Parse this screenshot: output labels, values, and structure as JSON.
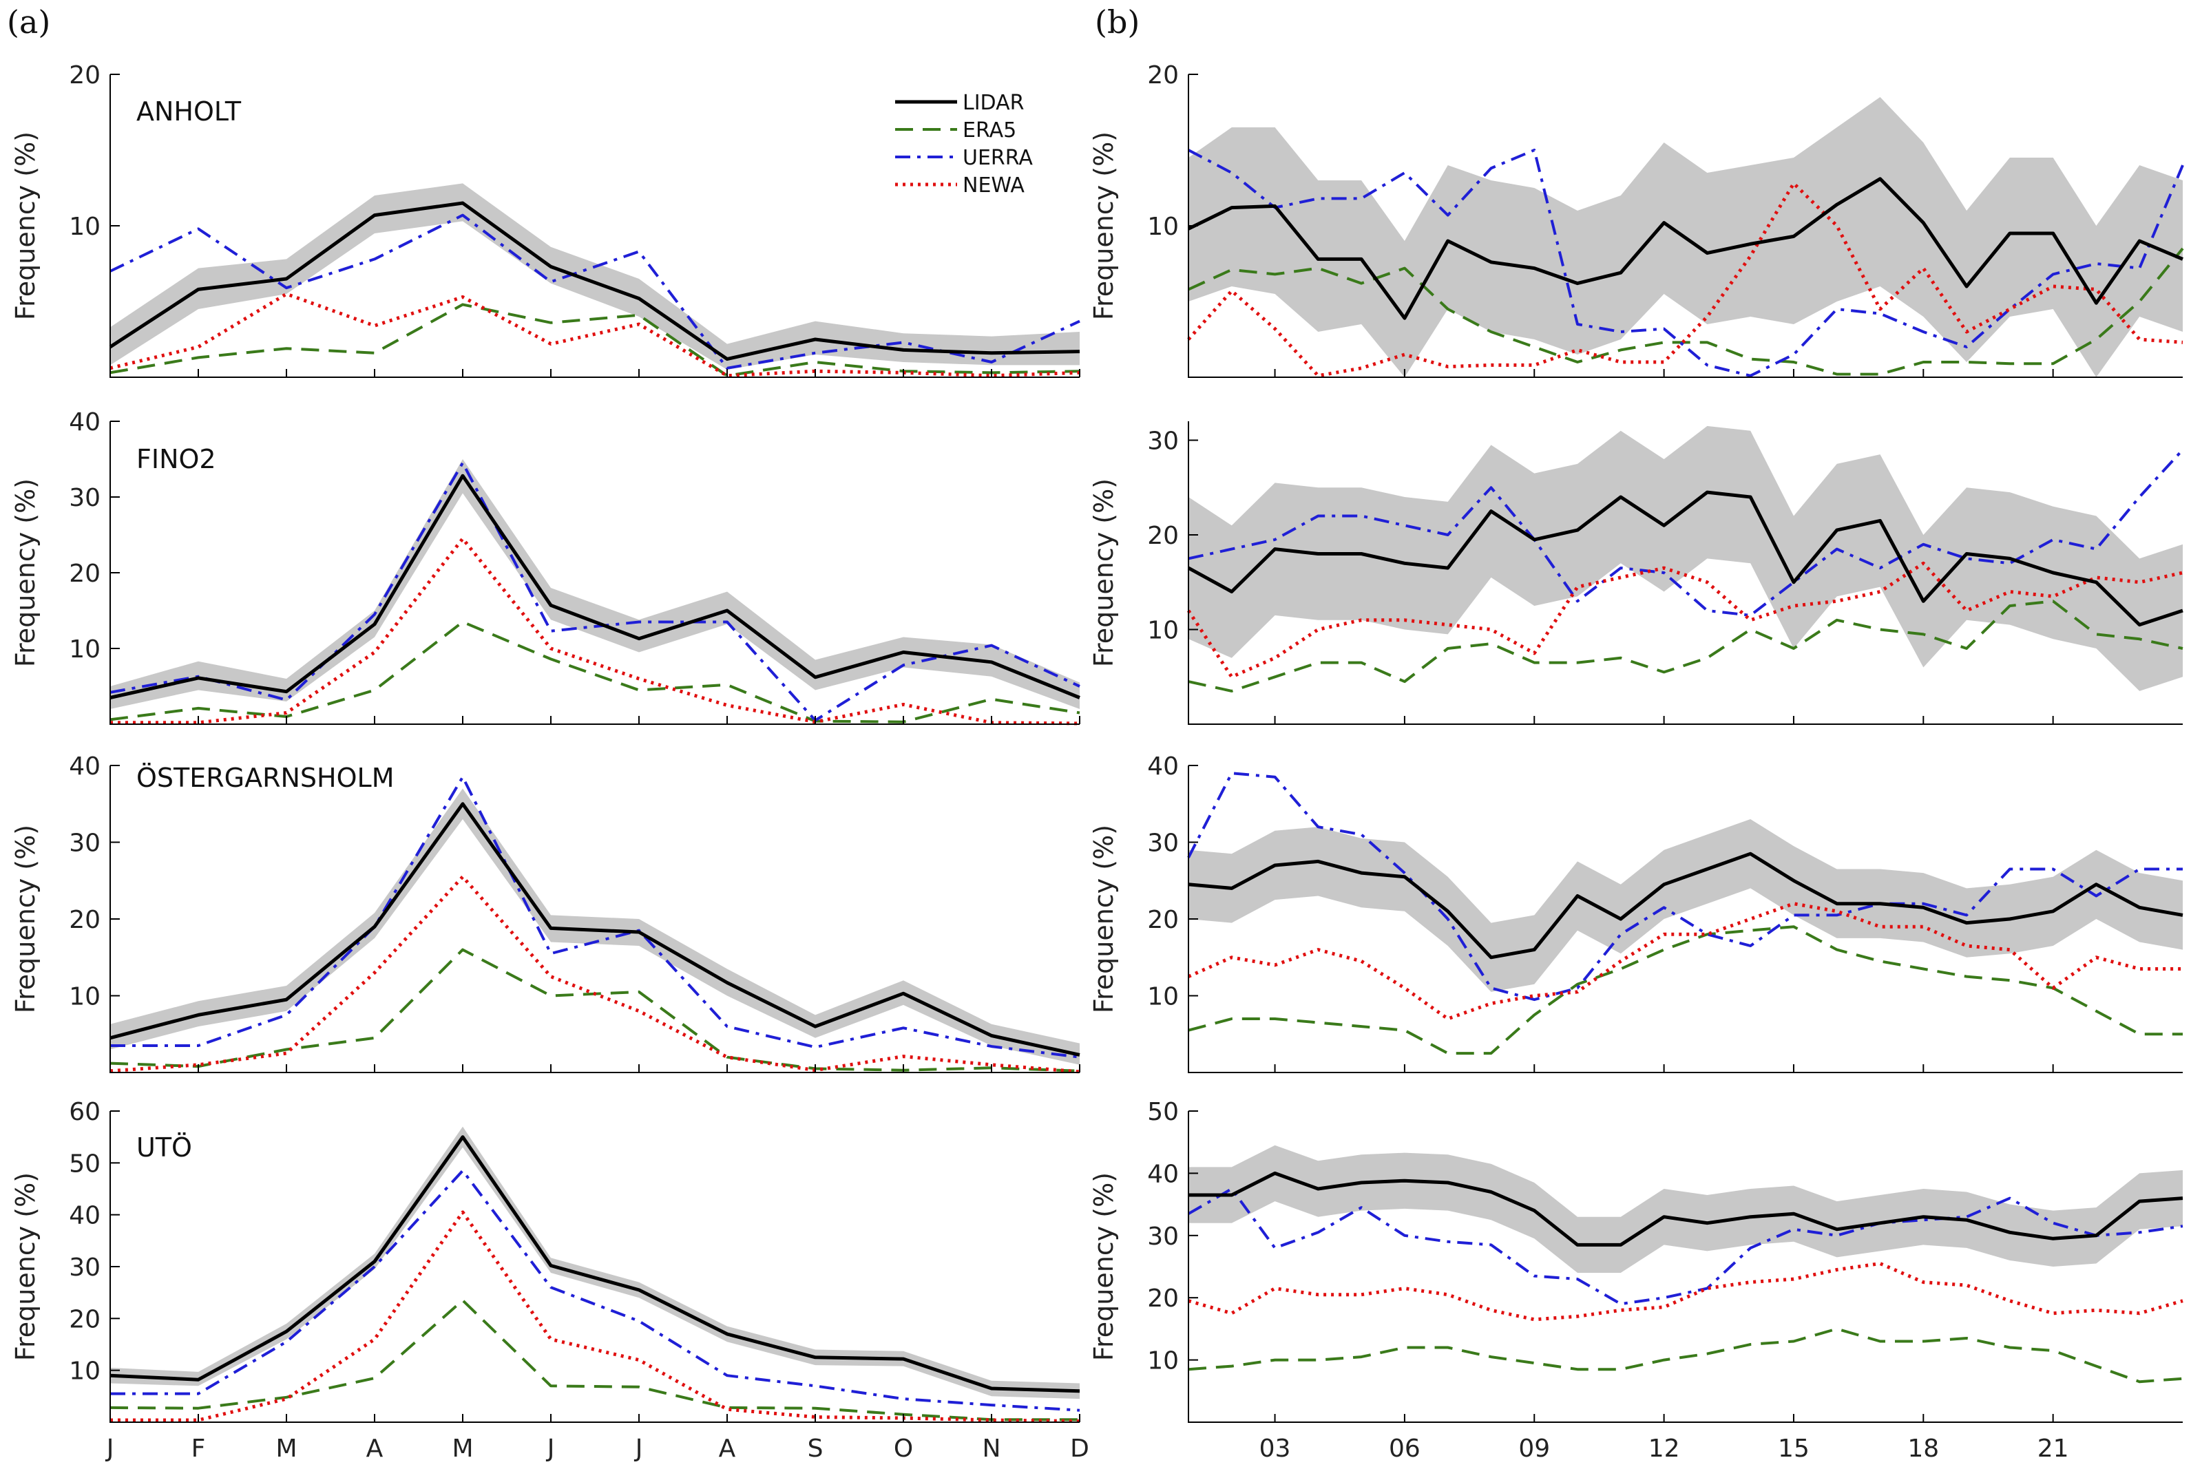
{
  "figure": {
    "panel_a_label": "(a)",
    "panel_b_label": "(b)"
  },
  "legend": [
    {
      "key": "lidar",
      "label": "LIDAR",
      "color": "#000000",
      "dash": "solid"
    },
    {
      "key": "era5",
      "label": "ERA5",
      "color": "#3a7a1a",
      "dash": "dashed"
    },
    {
      "key": "uerra",
      "label": "UERRA",
      "color": "#1f1fd6",
      "dash": "dashdot"
    },
    {
      "key": "newa",
      "label": "NEWA",
      "color": "#e01010",
      "dash": "dotted"
    }
  ],
  "colors": {
    "band": "#c8c8c8"
  },
  "y_label": "Frequency (%)",
  "chart_data": [
    {
      "panel": "a",
      "site": "ANHOLT",
      "type": "line",
      "x_ticks": [
        "J",
        "F",
        "M",
        "A",
        "M",
        "J",
        "J",
        "A",
        "S",
        "O",
        "N",
        "D"
      ],
      "y_ticks": [
        10,
        20
      ],
      "ylim": [
        0,
        20
      ],
      "lidar": [
        2.0,
        5.8,
        6.5,
        10.7,
        11.5,
        7.3,
        5.2,
        1.2,
        2.5,
        1.8,
        1.6,
        1.7
      ],
      "band_low": [
        0.8,
        4.5,
        5.5,
        9.5,
        10.3,
        6.2,
        4.0,
        0.5,
        1.5,
        1.0,
        0.8,
        0.8
      ],
      "band_high": [
        3.3,
        7.2,
        7.8,
        12.0,
        12.8,
        8.6,
        6.5,
        2.2,
        3.7,
        2.9,
        2.7,
        3.0
      ],
      "era5": [
        0.3,
        1.3,
        1.9,
        1.6,
        4.8,
        3.6,
        4.1,
        0.1,
        1.0,
        0.4,
        0.3,
        0.4
      ],
      "uerra": [
        7.0,
        9.8,
        5.9,
        7.8,
        10.7,
        6.3,
        8.3,
        0.6,
        1.6,
        2.3,
        1.0,
        3.7
      ],
      "newa": [
        0.6,
        2.0,
        5.5,
        3.4,
        5.3,
        2.2,
        3.5,
        0.1,
        0.4,
        0.3,
        0.1,
        0.3
      ]
    },
    {
      "panel": "a",
      "site": "FINO2",
      "type": "line",
      "x_ticks": [
        "J",
        "F",
        "M",
        "A",
        "M",
        "J",
        "J",
        "A",
        "S",
        "O",
        "N",
        "D"
      ],
      "y_ticks": [
        10,
        20,
        30,
        40
      ],
      "ylim": [
        0,
        40
      ],
      "lidar": [
        3.5,
        6.1,
        4.3,
        13.2,
        32.8,
        15.7,
        11.3,
        15.0,
        6.2,
        9.5,
        8.2,
        3.5
      ],
      "band_low": [
        2.0,
        4.5,
        3.0,
        11.5,
        30.5,
        13.8,
        9.5,
        13.2,
        4.5,
        7.5,
        6.3,
        2.0
      ],
      "band_high": [
        5.0,
        8.3,
        6.0,
        15.0,
        35.0,
        18.0,
        13.8,
        17.5,
        8.5,
        11.5,
        10.5,
        5.5
      ],
      "era5": [
        0.6,
        2.1,
        1.0,
        4.5,
        13.5,
        8.6,
        4.5,
        5.2,
        0.4,
        0.3,
        3.3,
        1.5
      ],
      "uerra": [
        4.2,
        6.3,
        3.2,
        14.5,
        34.5,
        12.3,
        13.5,
        13.5,
        0.5,
        7.8,
        10.4,
        5.0
      ],
      "newa": [
        0.2,
        0.2,
        1.5,
        9.5,
        24.5,
        10.0,
        6.0,
        2.5,
        0.3,
        2.6,
        0.2,
        0.1
      ]
    },
    {
      "panel": "a",
      "site": "ÖSTERGARNSHOLM",
      "type": "line",
      "x_ticks": [
        "J",
        "F",
        "M",
        "A",
        "M",
        "J",
        "J",
        "A",
        "S",
        "O",
        "N",
        "D"
      ],
      "y_ticks": [
        10,
        20,
        30,
        40
      ],
      "ylim": [
        0,
        40
      ],
      "lidar": [
        4.5,
        7.5,
        9.5,
        19.0,
        35.0,
        18.8,
        18.3,
        11.7,
        6.0,
        10.3,
        4.8,
        2.3
      ],
      "band_low": [
        3.0,
        6.0,
        8.0,
        17.5,
        33.0,
        17.0,
        16.5,
        10.0,
        4.5,
        8.8,
        3.5,
        1.0
      ],
      "band_high": [
        6.3,
        9.3,
        11.3,
        20.8,
        37.0,
        20.5,
        20.0,
        13.5,
        7.5,
        12.0,
        6.3,
        3.8
      ],
      "era5": [
        1.2,
        0.8,
        3.0,
        4.5,
        16.0,
        10.0,
        10.5,
        2.0,
        0.5,
        0.3,
        0.6,
        0.2
      ],
      "uerra": [
        3.5,
        3.5,
        7.5,
        19.0,
        38.5,
        15.5,
        18.5,
        6.0,
        3.3,
        5.8,
        3.4,
        2.0
      ],
      "newa": [
        0.2,
        1.0,
        2.5,
        13.0,
        25.5,
        12.5,
        8.0,
        2.0,
        0.3,
        2.1,
        1.0,
        0.1
      ]
    },
    {
      "panel": "a",
      "site": "UTÖ",
      "type": "line",
      "x_ticks": [
        "J",
        "F",
        "M",
        "A",
        "M",
        "J",
        "J",
        "A",
        "S",
        "O",
        "N",
        "D"
      ],
      "y_ticks": [
        10,
        20,
        30,
        40,
        50,
        60
      ],
      "ylim": [
        0,
        60
      ],
      "lidar": [
        9.0,
        8.2,
        17.5,
        31.0,
        55.0,
        30.2,
        25.5,
        17.0,
        12.5,
        12.2,
        6.5,
        6.0
      ],
      "band_low": [
        7.5,
        7.0,
        16.0,
        29.5,
        53.0,
        28.8,
        24.0,
        15.5,
        11.0,
        10.8,
        5.0,
        4.5
      ],
      "band_high": [
        10.5,
        9.7,
        19.0,
        32.5,
        57.0,
        31.7,
        27.0,
        18.5,
        14.0,
        13.7,
        8.0,
        7.5
      ],
      "era5": [
        2.8,
        2.7,
        4.8,
        8.5,
        23.5,
        7.0,
        6.8,
        2.8,
        2.7,
        1.5,
        0.5,
        0.5
      ],
      "uerra": [
        5.5,
        5.5,
        15.5,
        30.0,
        48.5,
        26.0,
        19.5,
        9.0,
        7.0,
        4.5,
        3.3,
        2.3
      ],
      "newa": [
        0.4,
        0.4,
        4.5,
        16.0,
        40.5,
        16.0,
        12.0,
        2.5,
        1.0,
        0.8,
        0.4,
        0.2
      ]
    },
    {
      "panel": "b",
      "type": "line",
      "x_ticks": [
        "03",
        "06",
        "09",
        "12",
        "15",
        "18",
        "21"
      ],
      "y_ticks": [
        10,
        20
      ],
      "ylim": [
        0,
        20
      ],
      "lidar": [
        9.8,
        11.2,
        11.3,
        7.8,
        7.8,
        3.9,
        9.0,
        7.6,
        7.2,
        6.2,
        6.9,
        10.2,
        8.2,
        8.8,
        9.3,
        11.4,
        13.1,
        10.2,
        6.0,
        9.5,
        9.5,
        4.9,
        9.0,
        7.8
      ],
      "band_low": [
        5.0,
        6.0,
        5.5,
        3.0,
        3.5,
        0.0,
        4.5,
        3.0,
        2.5,
        1.5,
        2.5,
        5.5,
        3.5,
        4.0,
        3.5,
        5.0,
        6.0,
        4.0,
        1.0,
        4.0,
        4.5,
        0.0,
        4.0,
        3.0
      ],
      "band_high": [
        14.5,
        16.5,
        16.5,
        13.0,
        13.0,
        9.0,
        14.0,
        13.0,
        12.5,
        11.0,
        12.0,
        15.5,
        13.5,
        14.0,
        14.5,
        16.5,
        18.5,
        15.5,
        11.0,
        14.5,
        14.5,
        10.0,
        14.0,
        13.0
      ],
      "era5": [
        5.8,
        7.1,
        6.8,
        7.2,
        6.2,
        7.2,
        4.5,
        3.0,
        2.0,
        1.0,
        1.8,
        2.3,
        2.3,
        1.2,
        1.0,
        0.2,
        0.2,
        1.0,
        1.0,
        0.9,
        0.9,
        2.5,
        5.0,
        8.5
      ],
      "uerra": [
        15.0,
        13.5,
        11.2,
        11.8,
        11.8,
        13.5,
        10.7,
        13.8,
        15.0,
        3.5,
        3.0,
        3.2,
        0.8,
        0.1,
        1.5,
        4.5,
        4.2,
        3.0,
        2.0,
        4.5,
        6.8,
        7.5,
        7.2,
        14.0
      ],
      "newa": [
        2.5,
        5.7,
        3.2,
        0.1,
        0.6,
        1.5,
        0.7,
        0.8,
        0.8,
        1.8,
        1.0,
        1.0,
        4.0,
        8.0,
        12.8,
        10.0,
        4.5,
        7.2,
        3.0,
        4.5,
        6.0,
        5.8,
        2.5,
        2.3
      ]
    },
    {
      "panel": "b",
      "type": "line",
      "x_ticks": [
        "03",
        "06",
        "09",
        "12",
        "15",
        "18",
        "21"
      ],
      "y_ticks": [
        10,
        20,
        30
      ],
      "ylim": [
        0,
        32
      ],
      "lidar": [
        16.5,
        14.0,
        18.5,
        18.0,
        18.0,
        17.0,
        16.5,
        22.5,
        19.5,
        20.5,
        24.0,
        21.0,
        24.5,
        24.0,
        15.0,
        20.5,
        21.5,
        13.0,
        18.0,
        17.5,
        16.0,
        15.0,
        10.5,
        12.0
      ],
      "band_low": [
        9.0,
        7.0,
        11.5,
        11.0,
        11.0,
        10.0,
        9.5,
        15.5,
        12.5,
        13.5,
        17.0,
        14.0,
        17.5,
        17.0,
        8.0,
        13.5,
        14.5,
        6.0,
        11.0,
        10.5,
        9.0,
        8.0,
        3.5,
        5.0
      ],
      "band_high": [
        24.0,
        21.0,
        25.5,
        25.0,
        25.0,
        24.0,
        23.5,
        29.5,
        26.5,
        27.5,
        31.0,
        28.0,
        31.5,
        31.0,
        22.0,
        27.5,
        28.5,
        20.0,
        25.0,
        24.5,
        23.0,
        22.0,
        17.5,
        19.0
      ],
      "era5": [
        4.5,
        3.5,
        5.0,
        6.5,
        6.5,
        4.5,
        8.0,
        8.5,
        6.5,
        6.5,
        7.0,
        5.5,
        7.0,
        10.0,
        8.0,
        11.0,
        10.0,
        9.5,
        8.0,
        12.5,
        13.0,
        9.5,
        9.0,
        8.0
      ],
      "uerra": [
        17.5,
        18.5,
        19.5,
        22.0,
        22.0,
        21.0,
        20.0,
        25.0,
        19.5,
        13.0,
        16.5,
        16.0,
        12.0,
        11.5,
        15.0,
        18.5,
        16.5,
        19.0,
        17.5,
        17.0,
        19.5,
        18.5,
        24.0,
        29.0
      ],
      "newa": [
        12.0,
        5.0,
        7.0,
        10.0,
        11.0,
        11.0,
        10.5,
        10.0,
        7.5,
        14.5,
        15.5,
        16.5,
        15.0,
        11.0,
        12.5,
        13.0,
        14.0,
        17.0,
        12.0,
        14.0,
        13.5,
        15.5,
        15.0,
        16.0
      ]
    },
    {
      "panel": "b",
      "type": "line",
      "x_ticks": [
        "03",
        "06",
        "09",
        "12",
        "15",
        "18",
        "21"
      ],
      "y_ticks": [
        10,
        20,
        30,
        40
      ],
      "ylim": [
        0,
        40
      ],
      "lidar": [
        24.5,
        24.0,
        27.0,
        27.5,
        26.0,
        25.5,
        21.0,
        15.0,
        16.0,
        23.0,
        20.0,
        24.5,
        26.5,
        28.5,
        25.0,
        22.0,
        22.0,
        21.5,
        19.5,
        20.0,
        21.0,
        24.5,
        21.5,
        20.5
      ],
      "band_low": [
        20.0,
        19.5,
        22.5,
        23.0,
        21.5,
        21.0,
        16.5,
        10.5,
        11.5,
        18.5,
        15.5,
        20.0,
        22.0,
        24.0,
        20.5,
        17.5,
        17.5,
        17.0,
        15.0,
        15.5,
        16.5,
        20.0,
        17.0,
        16.0
      ],
      "band_high": [
        29.0,
        28.5,
        31.5,
        32.0,
        30.5,
        30.0,
        25.5,
        19.5,
        20.5,
        27.5,
        24.5,
        29.0,
        31.0,
        33.0,
        29.5,
        26.5,
        26.5,
        26.0,
        24.0,
        24.5,
        25.5,
        29.0,
        26.0,
        25.0
      ],
      "era5": [
        5.5,
        7.0,
        7.0,
        6.5,
        6.0,
        5.5,
        2.5,
        2.5,
        7.5,
        11.5,
        13.5,
        16.0,
        18.0,
        18.5,
        19.0,
        16.0,
        14.5,
        13.5,
        12.5,
        12.0,
        11.0,
        8.0,
        5.0,
        5.0
      ],
      "uerra": [
        28.0,
        39.0,
        38.5,
        32.0,
        31.0,
        26.0,
        20.0,
        11.0,
        9.5,
        11.0,
        18.0,
        21.5,
        18.0,
        16.5,
        20.5,
        20.5,
        22.0,
        22.0,
        20.5,
        26.5,
        26.5,
        23.0,
        26.5,
        26.5
      ],
      "newa": [
        12.5,
        15.0,
        14.0,
        16.0,
        14.5,
        11.0,
        7.0,
        9.0,
        10.0,
        10.5,
        14.5,
        18.0,
        18.0,
        20.0,
        22.0,
        21.0,
        19.0,
        19.0,
        16.5,
        16.0,
        11.0,
        15.0,
        13.5,
        13.5
      ]
    },
    {
      "panel": "b",
      "type": "line",
      "x_ticks": [
        "03",
        "06",
        "09",
        "12",
        "15",
        "18",
        "21"
      ],
      "y_ticks": [
        10,
        20,
        30,
        40,
        50
      ],
      "ylim": [
        0,
        50
      ],
      "lidar": [
        36.5,
        36.5,
        40.0,
        37.5,
        38.5,
        38.8,
        38.5,
        37.0,
        34.0,
        28.5,
        28.5,
        33.0,
        32.0,
        33.0,
        33.5,
        31.0,
        32.0,
        33.0,
        32.5,
        30.5,
        29.5,
        30.0,
        35.5,
        36.0
      ],
      "band_low": [
        32.0,
        32.0,
        35.5,
        33.0,
        34.0,
        34.3,
        34.0,
        32.5,
        29.5,
        24.0,
        24.0,
        28.5,
        27.5,
        28.5,
        29.0,
        26.5,
        27.5,
        28.5,
        28.0,
        26.0,
        25.0,
        25.5,
        31.0,
        31.5
      ],
      "band_high": [
        41.0,
        41.0,
        44.5,
        42.0,
        43.0,
        43.3,
        43.0,
        41.5,
        38.5,
        33.0,
        33.0,
        37.5,
        36.5,
        37.5,
        38.0,
        35.5,
        36.5,
        37.5,
        37.0,
        35.0,
        34.0,
        34.5,
        40.0,
        40.5
      ],
      "era5": [
        8.5,
        9.0,
        10.0,
        10.0,
        10.5,
        12.0,
        12.0,
        10.5,
        9.5,
        8.5,
        8.5,
        10.0,
        11.0,
        12.5,
        13.0,
        15.0,
        13.0,
        13.0,
        13.5,
        12.0,
        11.5,
        9.0,
        6.5,
        7.0
      ],
      "uerra": [
        33.5,
        37.5,
        28.0,
        30.5,
        34.5,
        30.0,
        29.0,
        28.5,
        23.5,
        23.0,
        19.0,
        20.0,
        21.5,
        28.0,
        31.0,
        30.0,
        32.0,
        32.5,
        33.0,
        36.0,
        32.0,
        30.0,
        30.5,
        31.5
      ],
      "newa": [
        19.5,
        17.5,
        21.5,
        20.5,
        20.5,
        21.5,
        20.5,
        18.0,
        16.5,
        17.0,
        18.0,
        18.5,
        21.5,
        22.5,
        23.0,
        24.5,
        25.5,
        22.5,
        22.0,
        19.5,
        17.5,
        18.0,
        17.5,
        19.5
      ]
    }
  ]
}
